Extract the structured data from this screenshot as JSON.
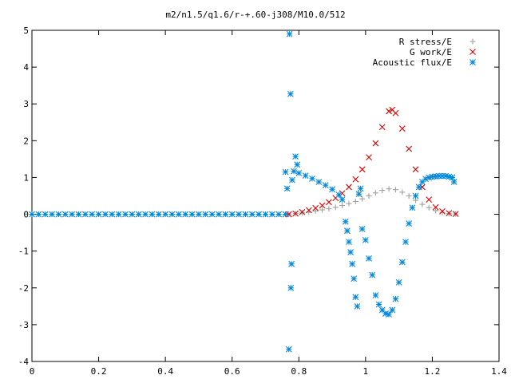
{
  "chart_data": {
    "type": "scatter",
    "title": "m2/n1.5/q1.6/r-+.60-j308/M10.0/512",
    "xlabel": "",
    "ylabel": "",
    "xlim": [
      0,
      1.4
    ],
    "ylim": [
      -4,
      5
    ],
    "x_ticks": [
      "0",
      "0.2",
      "0.4",
      "0.6",
      "0.8",
      "1",
      "1.2",
      "1.4"
    ],
    "y_ticks": [
      "-4",
      "-3",
      "-2",
      "-1",
      "0",
      "1",
      "2",
      "3",
      "4",
      "5"
    ],
    "grid": false,
    "legend_position": "top-right",
    "series": [
      {
        "name": "R stress/E",
        "marker": "+",
        "color": "#a0a0a0",
        "points": [
          [
            0.77,
            0.0
          ],
          [
            0.79,
            0.02
          ],
          [
            0.81,
            0.04
          ],
          [
            0.83,
            0.06
          ],
          [
            0.85,
            0.09
          ],
          [
            0.87,
            0.12
          ],
          [
            0.89,
            0.15
          ],
          [
            0.91,
            0.19
          ],
          [
            0.93,
            0.24
          ],
          [
            0.95,
            0.29
          ],
          [
            0.97,
            0.35
          ],
          [
            0.99,
            0.42
          ],
          [
            1.01,
            0.5
          ],
          [
            1.03,
            0.58
          ],
          [
            1.05,
            0.65
          ],
          [
            1.07,
            0.69
          ],
          [
            1.09,
            0.67
          ],
          [
            1.11,
            0.6
          ],
          [
            1.13,
            0.5
          ],
          [
            1.15,
            0.38
          ],
          [
            1.17,
            0.27
          ],
          [
            1.19,
            0.18
          ],
          [
            1.21,
            0.1
          ],
          [
            1.23,
            0.05
          ],
          [
            1.25,
            0.02
          ],
          [
            1.27,
            0.01
          ]
        ]
      },
      {
        "name": "G work/E",
        "marker": "x",
        "color": "#dd0000",
        "points": [
          [
            0.77,
            0.0
          ],
          [
            0.79,
            0.02
          ],
          [
            0.81,
            0.06
          ],
          [
            0.83,
            0.11
          ],
          [
            0.85,
            0.17
          ],
          [
            0.87,
            0.24
          ],
          [
            0.89,
            0.33
          ],
          [
            0.91,
            0.44
          ],
          [
            0.93,
            0.57
          ],
          [
            0.95,
            0.74
          ],
          [
            0.97,
            0.95
          ],
          [
            0.99,
            1.22
          ],
          [
            1.01,
            1.55
          ],
          [
            1.03,
            1.93
          ],
          [
            1.05,
            2.37
          ],
          [
            1.07,
            2.8
          ],
          [
            1.08,
            2.84
          ],
          [
            1.09,
            2.75
          ],
          [
            1.11,
            2.33
          ],
          [
            1.13,
            1.78
          ],
          [
            1.15,
            1.22
          ],
          [
            1.17,
            0.74
          ],
          [
            1.19,
            0.4
          ],
          [
            1.21,
            0.19
          ],
          [
            1.23,
            0.08
          ],
          [
            1.25,
            0.03
          ],
          [
            1.27,
            0.01
          ]
        ]
      },
      {
        "name": "Acoustic flux/E",
        "marker": "*",
        "color": "#0088dd",
        "points": [
          [
            0.0,
            0.0
          ],
          [
            0.02,
            0.0
          ],
          [
            0.04,
            0.0
          ],
          [
            0.06,
            0.0
          ],
          [
            0.08,
            0.0
          ],
          [
            0.1,
            0.0
          ],
          [
            0.12,
            0.0
          ],
          [
            0.14,
            0.0
          ],
          [
            0.16,
            0.0
          ],
          [
            0.18,
            0.0
          ],
          [
            0.2,
            0.0
          ],
          [
            0.22,
            0.0
          ],
          [
            0.24,
            0.0
          ],
          [
            0.26,
            0.0
          ],
          [
            0.28,
            0.0
          ],
          [
            0.3,
            0.0
          ],
          [
            0.32,
            0.0
          ],
          [
            0.34,
            0.0
          ],
          [
            0.36,
            0.0
          ],
          [
            0.38,
            0.0
          ],
          [
            0.4,
            0.0
          ],
          [
            0.42,
            0.0
          ],
          [
            0.44,
            0.0
          ],
          [
            0.46,
            0.0
          ],
          [
            0.48,
            0.0
          ],
          [
            0.5,
            0.0
          ],
          [
            0.52,
            0.0
          ],
          [
            0.54,
            0.0
          ],
          [
            0.56,
            0.0
          ],
          [
            0.58,
            0.0
          ],
          [
            0.6,
            0.0
          ],
          [
            0.62,
            0.0
          ],
          [
            0.64,
            0.0
          ],
          [
            0.66,
            0.0
          ],
          [
            0.68,
            0.0
          ],
          [
            0.7,
            0.0
          ],
          [
            0.72,
            0.0
          ],
          [
            0.74,
            0.0
          ],
          [
            0.76,
            0.0
          ],
          [
            0.76,
            1.15
          ],
          [
            0.765,
            0.7
          ],
          [
            0.77,
            -3.67
          ],
          [
            0.772,
            4.9
          ],
          [
            0.775,
            3.27
          ],
          [
            0.776,
            -2.0
          ],
          [
            0.778,
            -1.35
          ],
          [
            0.78,
            0.93
          ],
          [
            0.785,
            1.17
          ],
          [
            0.79,
            1.57
          ],
          [
            0.795,
            1.35
          ],
          [
            0.8,
            1.12
          ],
          [
            0.82,
            1.05
          ],
          [
            0.84,
            0.97
          ],
          [
            0.86,
            0.88
          ],
          [
            0.88,
            0.79
          ],
          [
            0.9,
            0.68
          ],
          [
            0.92,
            0.53
          ],
          [
            0.93,
            0.4
          ],
          [
            0.94,
            -0.2
          ],
          [
            0.945,
            -0.45
          ],
          [
            0.95,
            -0.75
          ],
          [
            0.955,
            -1.03
          ],
          [
            0.96,
            -1.35
          ],
          [
            0.965,
            -1.75
          ],
          [
            0.97,
            -2.25
          ],
          [
            0.975,
            -2.5
          ],
          [
            0.98,
            0.55
          ],
          [
            0.985,
            0.7
          ],
          [
            0.99,
            -0.4
          ],
          [
            1.0,
            -0.7
          ],
          [
            1.01,
            -1.2
          ],
          [
            1.02,
            -1.65
          ],
          [
            1.03,
            -2.2
          ],
          [
            1.04,
            -2.45
          ],
          [
            1.05,
            -2.6
          ],
          [
            1.06,
            -2.7
          ],
          [
            1.07,
            -2.72
          ],
          [
            1.08,
            -2.6
          ],
          [
            1.09,
            -2.3
          ],
          [
            1.1,
            -1.85
          ],
          [
            1.11,
            -1.3
          ],
          [
            1.12,
            -0.75
          ],
          [
            1.13,
            -0.25
          ],
          [
            1.14,
            0.18
          ],
          [
            1.15,
            0.5
          ],
          [
            1.16,
            0.74
          ],
          [
            1.17,
            0.88
          ],
          [
            1.18,
            0.96
          ],
          [
            1.19,
            1.0
          ],
          [
            1.2,
            1.02
          ],
          [
            1.21,
            1.03
          ],
          [
            1.22,
            1.04
          ],
          [
            1.23,
            1.04
          ],
          [
            1.24,
            1.04
          ],
          [
            1.25,
            1.02
          ],
          [
            1.26,
            1.0
          ],
          [
            1.265,
            0.88
          ]
        ]
      }
    ]
  }
}
